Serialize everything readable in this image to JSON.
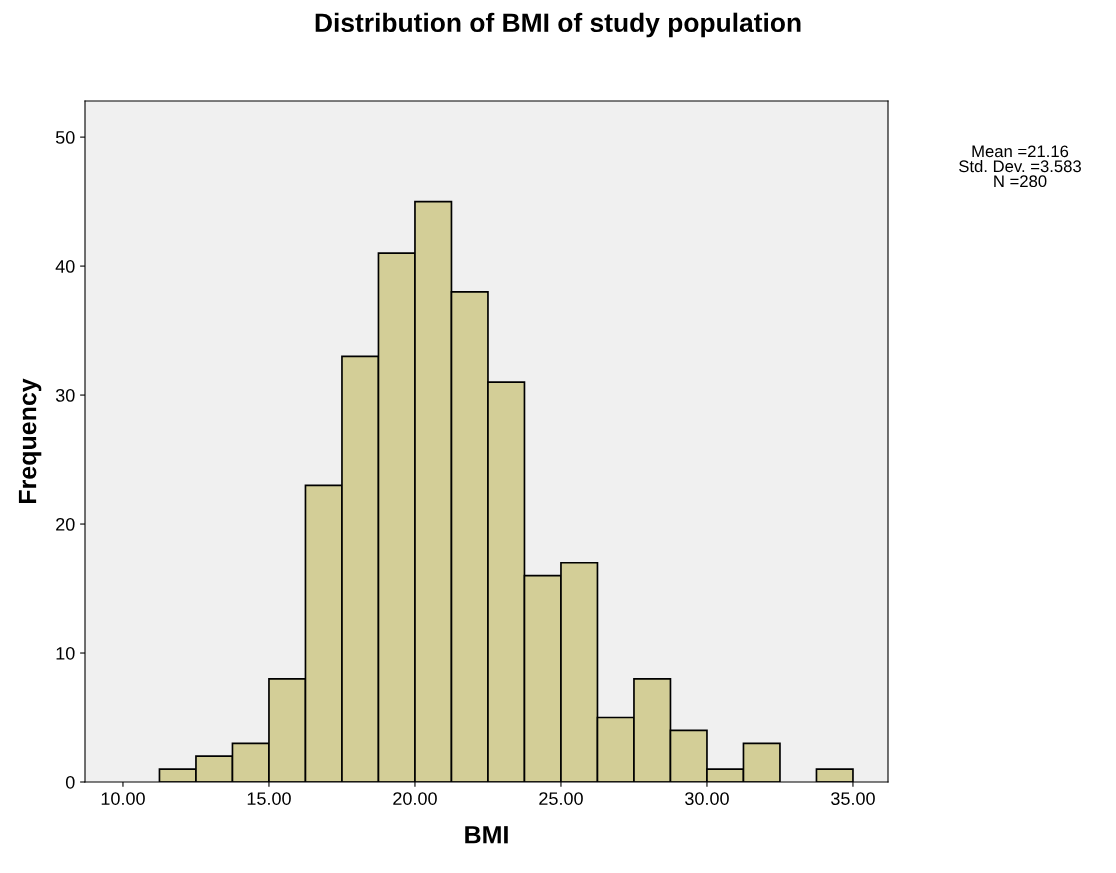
{
  "chart_data": {
    "type": "histogram",
    "title": "Distribution of BMI of study population",
    "xlabel": "BMI",
    "ylabel": "Frequency",
    "bins": [
      11.25,
      12.5,
      13.75,
      15.0,
      16.25,
      17.5,
      18.75,
      20.0,
      21.25,
      22.5,
      23.75,
      25.0,
      26.25,
      27.5,
      28.75,
      30.0,
      31.25,
      32.5,
      33.75,
      35.0
    ],
    "values": [
      1,
      2,
      3,
      8,
      23,
      33,
      41,
      45,
      38,
      31,
      16,
      17,
      5,
      8,
      4,
      1,
      3,
      0,
      1
    ],
    "color": "#d3ce97",
    "xlim": [
      8.7,
      36.2
    ],
    "xticks": [
      {
        "value": 10,
        "label": "10.00"
      },
      {
        "value": 15,
        "label": "15.00"
      },
      {
        "value": 20,
        "label": "20.00"
      },
      {
        "value": 25,
        "label": "25.00"
      },
      {
        "value": 30,
        "label": "30.00"
      },
      {
        "value": 35,
        "label": "35.00"
      }
    ],
    "ylim": [
      0,
      52.8
    ],
    "yticks": [
      0,
      10,
      20,
      30,
      40,
      50
    ],
    "annotations": [
      "Mean =21.16\nStd. Dev. =3.583\nN =280"
    ]
  }
}
